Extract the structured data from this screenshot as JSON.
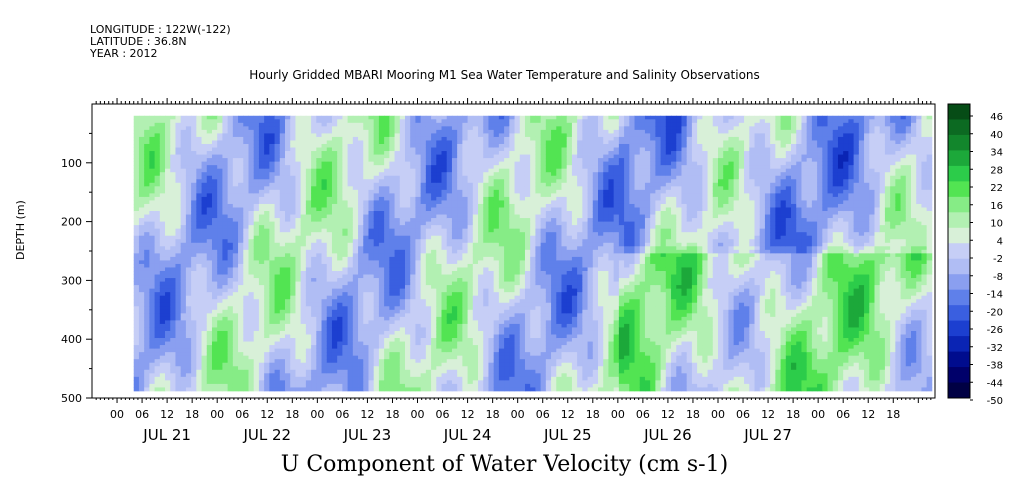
{
  "meta": {
    "longitude": "LONGITUDE : 122W(-122)",
    "latitude": "LATITUDE : 36.8N",
    "year": "YEAR : 2012"
  },
  "title": "Hourly Gridded MBARI Mooring M1 Sea Water Temperature and Salinity Observations",
  "footer": "U Component of Water Velocity (cm s-1)",
  "chart_data": {
    "type": "heatmap",
    "title": "Hourly Gridded MBARI Mooring M1 Sea Water Temperature and Salinity Observations",
    "xlabel": "",
    "ylabel": "DEPTH (m)",
    "ylim": [
      500,
      0
    ],
    "y_ticks": [
      100,
      200,
      300,
      400,
      500
    ],
    "x_hour_ticks": [
      "00",
      "06",
      "12",
      "18",
      "00",
      "06",
      "12",
      "18",
      "00",
      "06",
      "12",
      "18",
      "00",
      "06",
      "12",
      "18",
      "00",
      "06",
      "12",
      "18",
      "00",
      "06",
      "12",
      "18",
      "00",
      "06",
      "12",
      "18",
      "00",
      "06",
      "12",
      "18"
    ],
    "x_hour_offsets": [
      -2,
      4,
      10,
      16,
      22,
      28,
      34,
      40,
      46,
      52,
      58,
      64,
      70,
      76,
      82,
      88,
      94,
      100,
      106,
      112,
      118,
      124,
      130,
      136,
      142,
      148,
      154,
      160,
      166,
      172,
      178,
      184
    ],
    "date_labels": [
      "JUL 21",
      "JUL 22",
      "JUL 23",
      "JUL 24",
      "JUL 25",
      "JUL 26",
      "JUL 27"
    ],
    "xrange_hours": [
      -8,
      194
    ],
    "data_start_hour": 2,
    "data_depth_range": [
      20,
      485
    ],
    "colorbar_levels": [
      "46",
      "40",
      "34",
      "28",
      "22",
      "16",
      "10",
      "4",
      "-2",
      "-8",
      "-14",
      "-20",
      "-26",
      "-32",
      "-38",
      "-44",
      "-50"
    ],
    "colorbar_range": [
      -50,
      52
    ],
    "colorbar_colors": [
      "#000044",
      "#00006a",
      "#000c8e",
      "#0a24b4",
      "#1c3fd0",
      "#3a5fe0",
      "#5f80ea",
      "#8a9ff0",
      "#b0bdf4",
      "#c6cef6",
      "#d8f0d8",
      "#b2f0b2",
      "#86ec86",
      "#52e452",
      "#2ccc4a",
      "#1ca83a",
      "#12862c",
      "#0c6a22",
      "#064c16"
    ],
    "field_description": "U velocity alternating between about -20 and +20 cm/s with depth-time banding"
  }
}
